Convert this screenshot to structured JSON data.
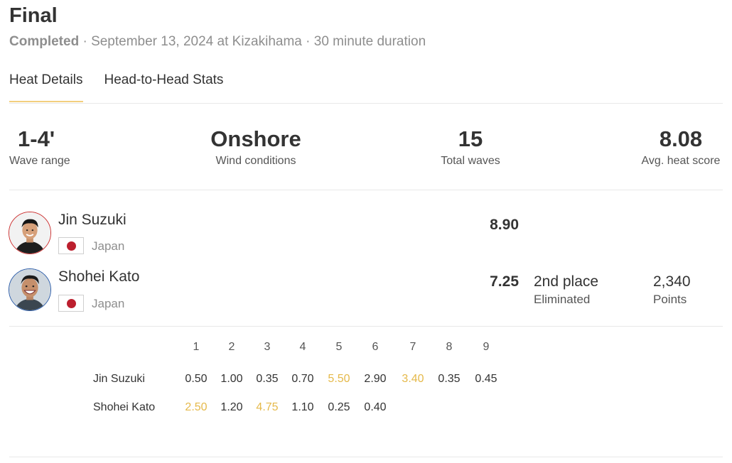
{
  "heat": {
    "title": "Final",
    "status": "Completed",
    "details": " · September 13, 2024 at Kizakihama · 30 minute duration"
  },
  "tabs": [
    {
      "label": "Heat Details",
      "active": true
    },
    {
      "label": "Head-to-Head Stats",
      "active": false
    }
  ],
  "stats": [
    {
      "value": "1-4'",
      "label": "Wave range"
    },
    {
      "value": "Onshore",
      "label": "Wind conditions"
    },
    {
      "value": "15",
      "label": "Total waves"
    },
    {
      "value": "8.08",
      "label": "Avg. heat score"
    }
  ],
  "surfers": [
    {
      "name": "Jin Suzuki",
      "country": "Japan",
      "score": "8.90",
      "flag_color": "#bc1f2e",
      "avatar_border": "#cc3333"
    },
    {
      "name": "Shohei Kato",
      "country": "Japan",
      "score": "7.25",
      "place": "2nd place",
      "result": "Eliminated",
      "points": "2,340",
      "points_label": "Points",
      "flag_color": "#bc1f2e",
      "avatar_border": "#2d5da8"
    }
  ],
  "wave_table": {
    "headers": [
      "1",
      "2",
      "3",
      "4",
      "5",
      "6",
      "7",
      "8",
      "9"
    ],
    "rows": [
      {
        "name": "Jin Suzuki",
        "scores": [
          "0.50",
          "1.00",
          "0.35",
          "0.70",
          "5.50",
          "2.90",
          "3.40",
          "0.35",
          "0.45"
        ],
        "counting": [
          4,
          6
        ]
      },
      {
        "name": "Shohei Kato",
        "scores": [
          "2.50",
          "1.20",
          "4.75",
          "1.10",
          "0.25",
          "0.40"
        ],
        "counting": [
          0,
          2
        ]
      }
    ],
    "highlight_color": "#e5b94a"
  }
}
